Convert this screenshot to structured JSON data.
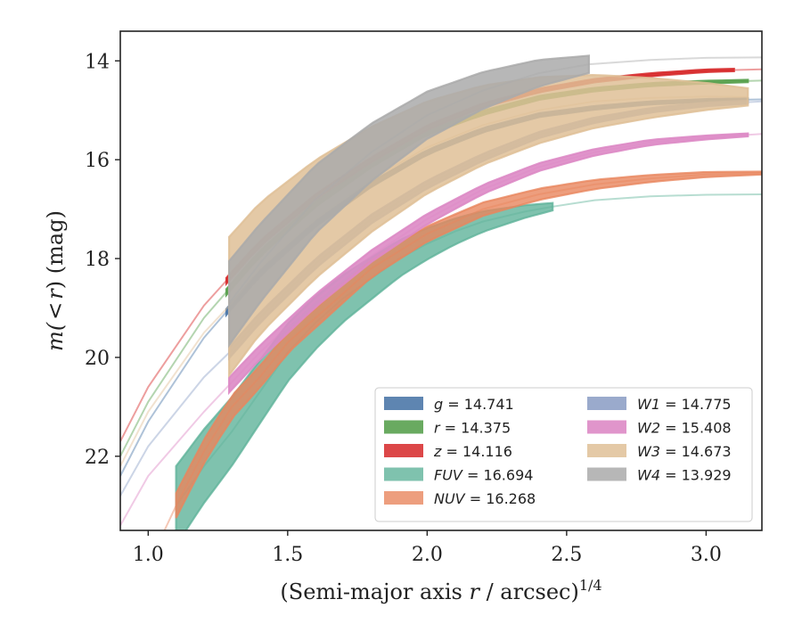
{
  "chart_data": {
    "type": "line",
    "xlabel_main": "(Semi-major axis ",
    "xlabel_var": "r",
    "xlabel_unit": " / arcsec)",
    "xlabel_exp": "1/4",
    "ylabel_pre": "m(",
    "ylabel_lt": "<",
    "ylabel_var": "r",
    "ylabel_post": ") (mag)",
    "xlim": [
      0.9,
      3.2
    ],
    "ylim": [
      23.5,
      13.4
    ],
    "y_inverted": true,
    "x_ticks": [
      1.0,
      1.5,
      2.0,
      2.5,
      3.0
    ],
    "x_tick_labels": [
      "1.0",
      "1.5",
      "2.0",
      "2.5",
      "3.0"
    ],
    "y_ticks": [
      14,
      16,
      18,
      20,
      22
    ],
    "y_tick_labels": [
      "14",
      "16",
      "18",
      "20",
      "22"
    ],
    "legend_position": "lower-right",
    "series": [
      {
        "name": "g",
        "value": "14.741",
        "color": "#4c78a8",
        "alpha": 0.9,
        "x": [
          0.9,
          1.0,
          1.2,
          1.4,
          1.6,
          1.8,
          2.0,
          2.2,
          2.4,
          2.6,
          2.8,
          3.0,
          3.2
        ],
        "y": [
          22.4,
          21.3,
          19.6,
          18.3,
          17.3,
          16.5,
          15.85,
          15.4,
          15.1,
          14.95,
          14.85,
          14.8,
          14.78
        ],
        "band_x": [
          1.28,
          3.15
        ],
        "width": [
          0.12,
          0.05
        ]
      },
      {
        "name": "r",
        "value": "14.375",
        "color": "#59a14f",
        "alpha": 0.9,
        "x": [
          0.9,
          1.0,
          1.2,
          1.4,
          1.6,
          1.8,
          2.0,
          2.2,
          2.4,
          2.6,
          2.8,
          3.0,
          3.2
        ],
        "y": [
          22.0,
          20.9,
          19.2,
          17.9,
          16.9,
          16.1,
          15.45,
          15.05,
          14.75,
          14.58,
          14.48,
          14.43,
          14.4
        ],
        "band_x": [
          1.28,
          3.15
        ],
        "width": [
          0.12,
          0.05
        ]
      },
      {
        "name": "z",
        "value": "14.116",
        "color": "#d62728",
        "alpha": 0.85,
        "x": [
          0.9,
          1.0,
          1.2,
          1.4,
          1.6,
          1.8,
          2.0,
          2.2,
          2.4,
          2.6,
          2.8,
          3.0,
          3.2
        ],
        "y": [
          21.7,
          20.6,
          18.95,
          17.7,
          16.75,
          16.0,
          15.35,
          14.9,
          14.6,
          14.4,
          14.28,
          14.2,
          14.17
        ],
        "band_x": [
          1.28,
          3.1
        ],
        "width": [
          0.12,
          0.05
        ]
      },
      {
        "name": "FUV",
        "value": "16.694",
        "color": "#5fb39a",
        "alpha": 0.8,
        "x": [
          1.1,
          1.2,
          1.3,
          1.4,
          1.5,
          1.6,
          1.7,
          1.8,
          1.9,
          2.0,
          2.1,
          2.2,
          2.35,
          2.45,
          2.6,
          2.8,
          3.0,
          3.2
        ],
        "y": [
          23.0,
          22.2,
          21.5,
          20.7,
          19.9,
          19.3,
          18.8,
          18.4,
          18.0,
          17.7,
          17.45,
          17.25,
          17.05,
          16.95,
          16.82,
          16.74,
          16.71,
          16.7
        ],
        "band_x": [
          1.1,
          2.45
        ],
        "width": [
          1.6,
          0.15
        ]
      },
      {
        "name": "NUV",
        "value": "16.268",
        "color": "#e8865e",
        "alpha": 0.8,
        "x": [
          0.9,
          1.0,
          1.1,
          1.2,
          1.3,
          1.4,
          1.5,
          1.6,
          1.8,
          2.0,
          2.2,
          2.4,
          2.6,
          2.8,
          3.0,
          3.2
        ],
        "y": [
          25.5,
          24.2,
          23.0,
          21.9,
          21.0,
          20.4,
          19.7,
          19.2,
          18.2,
          17.5,
          17.0,
          16.7,
          16.5,
          16.38,
          16.3,
          16.27
        ],
        "band_x": [
          1.1,
          3.2
        ],
        "width": [
          0.5,
          0.06
        ]
      },
      {
        "name": "W1",
        "value": "14.775",
        "color": "#8fa1c7",
        "alpha": 0.9,
        "x": [
          0.9,
          1.0,
          1.2,
          1.3,
          1.4,
          1.6,
          1.8,
          2.0,
          2.2,
          2.4,
          2.6,
          2.8,
          3.0,
          3.2
        ],
        "y": [
          22.8,
          21.8,
          20.4,
          19.85,
          19.2,
          18.1,
          17.2,
          16.5,
          15.95,
          15.5,
          15.2,
          15.0,
          14.88,
          14.82
        ],
        "band_x": [
          1.29,
          3.15
        ],
        "width": [
          0.22,
          0.06
        ]
      },
      {
        "name": "W2",
        "value": "15.408",
        "color": "#dd8ac5",
        "alpha": 0.9,
        "x": [
          0.9,
          1.0,
          1.2,
          1.3,
          1.4,
          1.6,
          1.8,
          2.0,
          2.2,
          2.4,
          2.6,
          2.8,
          3.0,
          3.2
        ],
        "y": [
          23.4,
          22.4,
          21.1,
          20.5,
          19.9,
          18.85,
          17.95,
          17.2,
          16.6,
          16.15,
          15.85,
          15.65,
          15.55,
          15.48
        ],
        "band_x": [
          1.29,
          3.15
        ],
        "width": [
          0.3,
          0.06
        ]
      },
      {
        "name": "W3",
        "value": "14.673",
        "color": "#dfbf96",
        "alpha": 0.85,
        "x": [
          0.9,
          1.0,
          1.2,
          1.3,
          1.4,
          1.6,
          1.8,
          2.0,
          2.2,
          2.4,
          2.6,
          2.8,
          3.0,
          3.15
        ],
        "y": [
          22.2,
          21.1,
          19.5,
          18.9,
          18.2,
          17.2,
          16.4,
          15.75,
          15.3,
          15.0,
          14.82,
          14.75,
          14.72,
          14.73
        ],
        "band_x": [
          1.29,
          3.15
        ],
        "width": [
          2.8,
          0.35
        ]
      },
      {
        "name": "W4",
        "value": "13.929",
        "color": "#aaaaaa",
        "alpha": 0.85,
        "x": [
          1.29,
          1.4,
          1.6,
          1.8,
          2.0,
          2.2,
          2.4,
          2.58,
          2.8,
          3.0,
          3.2
        ],
        "y": [
          18.9,
          18.1,
          16.8,
          15.85,
          15.1,
          14.6,
          14.25,
          14.07,
          13.98,
          13.94,
          13.93
        ],
        "band_x": [
          1.29,
          2.58
        ],
        "width": [
          1.7,
          0.35
        ]
      }
    ]
  }
}
